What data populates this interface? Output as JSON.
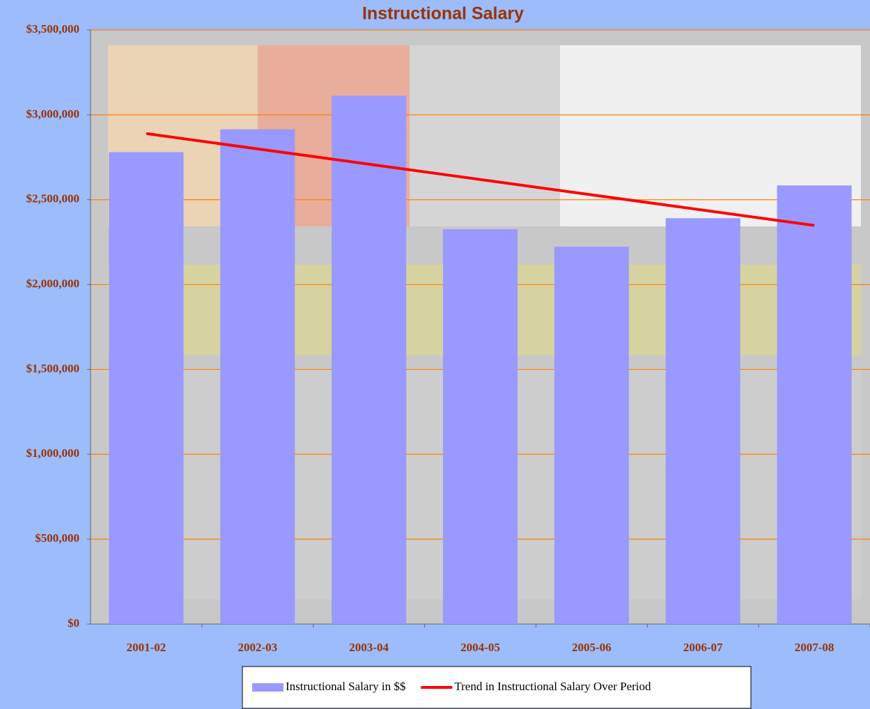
{
  "chart_data": {
    "type": "bar",
    "title": "Instructional Salary",
    "categories": [
      "2001-02",
      "2002-03",
      "2003-04",
      "2004-05",
      "2005-06",
      "2006-07",
      "2007-08"
    ],
    "series": [
      {
        "name": "Instructional Salary in $$",
        "type": "bar",
        "color": "#9999ff",
        "values": [
          2780000,
          2915000,
          3113000,
          2326000,
          2223000,
          2391000,
          2584000
        ]
      },
      {
        "name": "Trend in Instructional Salary Over Period",
        "type": "line",
        "color": "#ff0000",
        "values": [
          2889500,
          2799300,
          2709100,
          2618900,
          2528700,
          2438500,
          2348300
        ]
      }
    ],
    "ylim": [
      0,
      3500000
    ],
    "yticks": [
      {
        "value": 0,
        "label": "$0"
      },
      {
        "value": 500000,
        "label": "$500,000"
      },
      {
        "value": 1000000,
        "label": "$1,000,000"
      },
      {
        "value": 1500000,
        "label": "$1,500,000"
      },
      {
        "value": 2000000,
        "label": "$2,000,000"
      },
      {
        "value": 2500000,
        "label": "$2,500,000"
      },
      {
        "value": 3000000,
        "label": "$3,000,000"
      },
      {
        "value": 3500000,
        "label": "$3,500,000"
      }
    ],
    "grid": true,
    "grid_color": "#ff8000",
    "legend": "bottom"
  }
}
